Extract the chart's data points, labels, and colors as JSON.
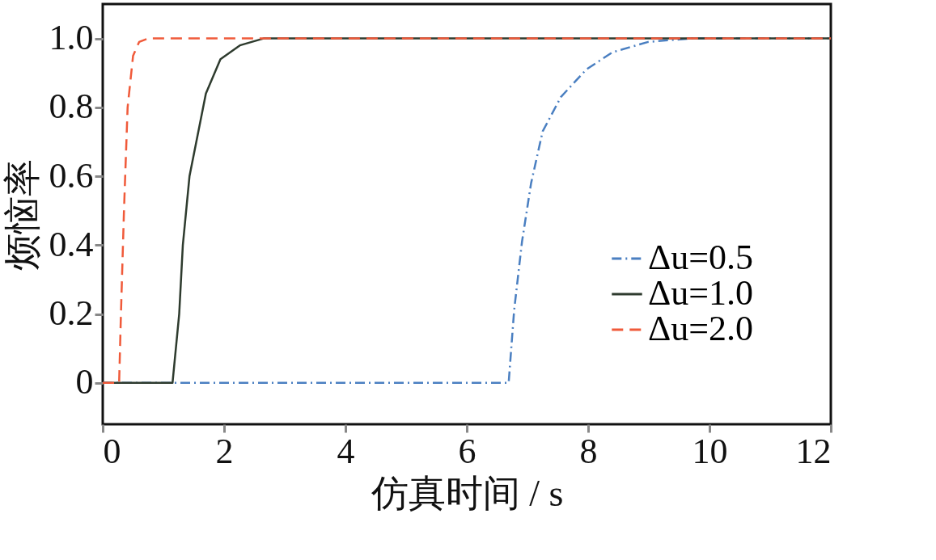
{
  "chart_data": {
    "type": "line",
    "xlabel": "仿真时间 / s",
    "ylabel": "烦恼率",
    "xlim": [
      0,
      12
    ],
    "ylim": [
      -0.12,
      1.1
    ],
    "xticks": [
      0,
      2,
      4,
      6,
      8,
      10,
      12
    ],
    "yticks": [
      0,
      0.2,
      0.4,
      0.6,
      0.8,
      {
        "value": 1,
        "label": "1.0"
      }
    ],
    "grid": false,
    "legend": "right",
    "marker": "none",
    "series": [
      {
        "name": "Δu=0.5",
        "color": "#4a7fc1",
        "line_style": "dashdot",
        "x": [
          0,
          6.69,
          6.78,
          6.91,
          7.06,
          7.25,
          7.55,
          7.97,
          8.4,
          8.99,
          9.68,
          12
        ],
        "values": [
          0,
          0,
          0.21,
          0.41,
          0.58,
          0.73,
          0.83,
          0.91,
          0.96,
          0.99,
          1.0,
          1.0
        ]
      },
      {
        "name": "Δu=1.0",
        "color": "#2e3b2e",
        "line_style": "solid",
        "x": [
          0,
          1.15,
          1.26,
          1.32,
          1.43,
          1.7,
          1.94,
          2.26,
          2.65,
          12
        ],
        "values": [
          0,
          0,
          0.2,
          0.4,
          0.6,
          0.84,
          0.94,
          0.98,
          1.0,
          1.0
        ]
      },
      {
        "name": "Δu=2.0",
        "color": "#f05a3a",
        "line_style": "dashed",
        "x": [
          0,
          0.27,
          0.3,
          0.35,
          0.41,
          0.5,
          0.6,
          0.75,
          12
        ],
        "values": [
          0,
          0,
          0.2,
          0.5,
          0.8,
          0.95,
          0.99,
          1.0,
          1.0
        ]
      }
    ]
  }
}
